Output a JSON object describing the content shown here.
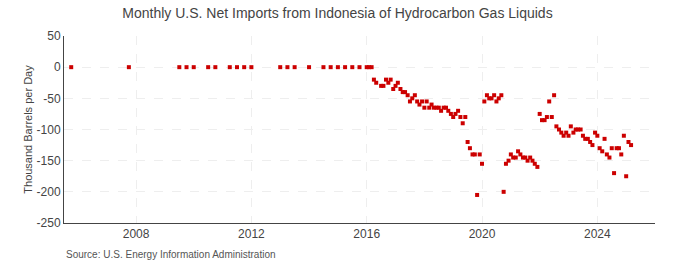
{
  "chart_data": {
    "type": "scatter",
    "title": "Monthly U.S. Net Imports from Indonesia of Hydrocarbon Gas Liquids",
    "ylabel": "Thousand Barrels per Day",
    "annotations": [
      "Source: U.S. Energy Information Administration"
    ],
    "color": "#cc0000",
    "marker": "square",
    "grid": true,
    "xlim": [
      2005.5,
      2026.0
    ],
    "xticks": [
      2008,
      2012,
      2016,
      2020,
      2024
    ],
    "ylim": [
      -250,
      50
    ],
    "yticks": [
      50,
      0,
      -50,
      -100,
      -150,
      -200,
      -250
    ],
    "x": [
      2005.75,
      2007.75,
      2009.5,
      2009.75,
      2010.0,
      2010.5,
      2010.75,
      2011.25,
      2011.5,
      2011.75,
      2012.0,
      2013.0,
      2013.25,
      2013.5,
      2014.0,
      2014.5,
      2014.75,
      2015.0,
      2015.25,
      2015.5,
      2015.75,
      2016.0,
      2016.08,
      2016.17,
      2016.25,
      2016.33,
      2016.5,
      2016.58,
      2016.67,
      2016.75,
      2016.83,
      2016.92,
      2017.0,
      2017.08,
      2017.17,
      2017.25,
      2017.33,
      2017.42,
      2017.5,
      2017.58,
      2017.67,
      2017.75,
      2017.83,
      2017.92,
      2018.0,
      2018.08,
      2018.17,
      2018.25,
      2018.33,
      2018.42,
      2018.5,
      2018.58,
      2018.67,
      2018.75,
      2018.83,
      2018.92,
      2019.0,
      2019.08,
      2019.17,
      2019.25,
      2019.33,
      2019.42,
      2019.5,
      2019.58,
      2019.67,
      2019.75,
      2019.83,
      2019.92,
      2020.0,
      2020.08,
      2020.17,
      2020.25,
      2020.33,
      2020.42,
      2020.5,
      2020.58,
      2020.67,
      2020.75,
      2020.83,
      2020.92,
      2021.0,
      2021.08,
      2021.17,
      2021.25,
      2021.33,
      2021.42,
      2021.5,
      2021.58,
      2021.67,
      2021.75,
      2021.83,
      2021.92,
      2022.0,
      2022.08,
      2022.17,
      2022.25,
      2022.33,
      2022.42,
      2022.5,
      2022.58,
      2022.67,
      2022.75,
      2022.83,
      2022.92,
      2023.0,
      2023.08,
      2023.17,
      2023.25,
      2023.33,
      2023.42,
      2023.5,
      2023.58,
      2023.67,
      2023.75,
      2023.83,
      2023.92,
      2024.0,
      2024.08,
      2024.17,
      2024.25,
      2024.33,
      2024.42,
      2024.5,
      2024.58,
      2024.67,
      2024.75,
      2024.83,
      2024.92,
      2025.0,
      2025.08,
      2025.17
    ],
    "values": [
      0,
      0,
      0,
      0,
      0,
      0,
      0,
      0,
      0,
      0,
      0,
      0,
      0,
      0,
      0,
      0,
      0,
      0,
      0,
      0,
      0,
      0,
      0,
      0,
      -20,
      -25,
      -30,
      -30,
      -20,
      -25,
      -20,
      -35,
      -30,
      -25,
      -35,
      -40,
      -40,
      -45,
      -55,
      -50,
      -45,
      -55,
      -60,
      -55,
      -65,
      -55,
      -65,
      -60,
      -65,
      -65,
      -65,
      -70,
      -65,
      -65,
      -70,
      -75,
      -80,
      -75,
      -70,
      -80,
      -90,
      -80,
      -120,
      -130,
      -140,
      -140,
      -205,
      -140,
      -155,
      -55,
      -45,
      -50,
      -50,
      -45,
      -55,
      -50,
      -45,
      -200,
      -155,
      -150,
      -140,
      -145,
      -145,
      -135,
      -140,
      -145,
      -145,
      -150,
      -145,
      -150,
      -155,
      -160,
      -75,
      -85,
      -85,
      -80,
      -55,
      -80,
      -45,
      -95,
      -100,
      -105,
      -110,
      -105,
      -110,
      -95,
      -105,
      -100,
      -100,
      -100,
      -110,
      -115,
      -115,
      -120,
      -125,
      -105,
      -110,
      -130,
      -135,
      -115,
      -140,
      -145,
      -130,
      -170,
      -130,
      -130,
      -140,
      -110,
      -175,
      -120,
      -125
    ]
  }
}
